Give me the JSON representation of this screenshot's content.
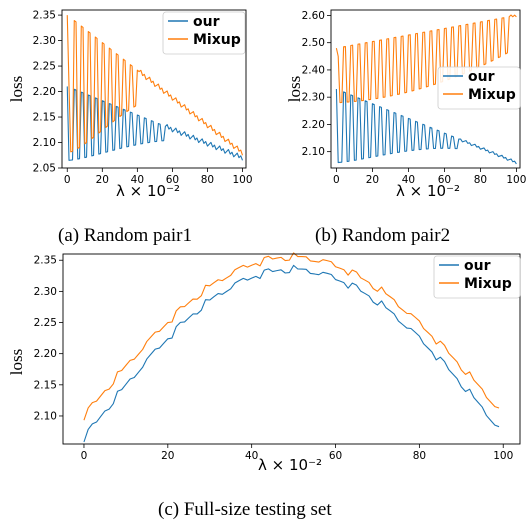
{
  "chart_data": [
    {
      "type": "line",
      "caption": "(a)  Random pair1",
      "xlabel": "λ × 10⁻²",
      "ylabel": "loss",
      "xlim": [
        -3,
        102
      ],
      "ylim": [
        2.05,
        2.36
      ],
      "xticks": [
        0,
        20,
        40,
        60,
        80,
        100
      ],
      "yticks": [
        2.05,
        2.1,
        2.15,
        2.2,
        2.25,
        2.3,
        2.35
      ],
      "legend": "top-right",
      "grid": false,
      "series": [
        {
          "name": "our",
          "color": "#1f77b4",
          "pattern": "oscillating",
          "upper_start": 2.21,
          "upper_end": 2.07,
          "lower_start": 2.065,
          "lower_end": 2.06,
          "osc_end": 55,
          "step": 2,
          "first_low": 2.065
        },
        {
          "name": "Mixup",
          "color": "#ff7f0e",
          "pattern": "oscillating",
          "upper_start": 2.35,
          "upper_end": 2.08,
          "lower_start": 2.08,
          "lower_end": 2.08,
          "osc_end": 40,
          "step": 2,
          "first_low": 2.21
        }
      ]
    },
    {
      "type": "line",
      "caption": "(b)  Random pair2",
      "xlabel": "λ × 10⁻²",
      "ylabel": "loss",
      "xlim": [
        -3,
        102
      ],
      "ylim": [
        2.04,
        2.62
      ],
      "xticks": [
        0,
        20,
        40,
        60,
        80,
        100
      ],
      "yticks": [
        2.1,
        2.2,
        2.3,
        2.4,
        2.5,
        2.6
      ],
      "legend": "center-right",
      "grid": false,
      "series": [
        {
          "name": "our",
          "color": "#1f77b4",
          "pattern": "oscillating",
          "upper_start": 2.33,
          "upper_end": 2.06,
          "lower_start": 2.06,
          "lower_end": 2.06,
          "osc_end": 68,
          "step": 2,
          "first_low": 2.06
        },
        {
          "name": "Mixup",
          "color": "#ff7f0e",
          "pattern": "oscillating",
          "upper_start": 2.48,
          "upper_end": 2.6,
          "lower_start": 2.28,
          "lower_end": 2.28,
          "osc_end": 96,
          "step": 2,
          "first_low": 2.45
        }
      ]
    },
    {
      "type": "line",
      "caption": "(c)  Full-size testing set",
      "xlabel": "λ × 10⁻²",
      "ylabel": "loss",
      "xlim": [
        -5,
        104
      ],
      "ylim": [
        2.055,
        2.36
      ],
      "xticks": [
        0,
        20,
        40,
        60,
        80,
        100
      ],
      "yticks": [
        2.1,
        2.15,
        2.2,
        2.25,
        2.3,
        2.35
      ],
      "legend": "top-right",
      "grid": false,
      "series": [
        {
          "name": "our",
          "color": "#1f77b4",
          "pattern": "arch",
          "start": 2.065,
          "peak": 2.335,
          "end": 2.08
        },
        {
          "name": "Mixup",
          "color": "#ff7f0e",
          "pattern": "arch",
          "start": 2.1,
          "peak": 2.355,
          "end": 2.11
        }
      ]
    }
  ]
}
